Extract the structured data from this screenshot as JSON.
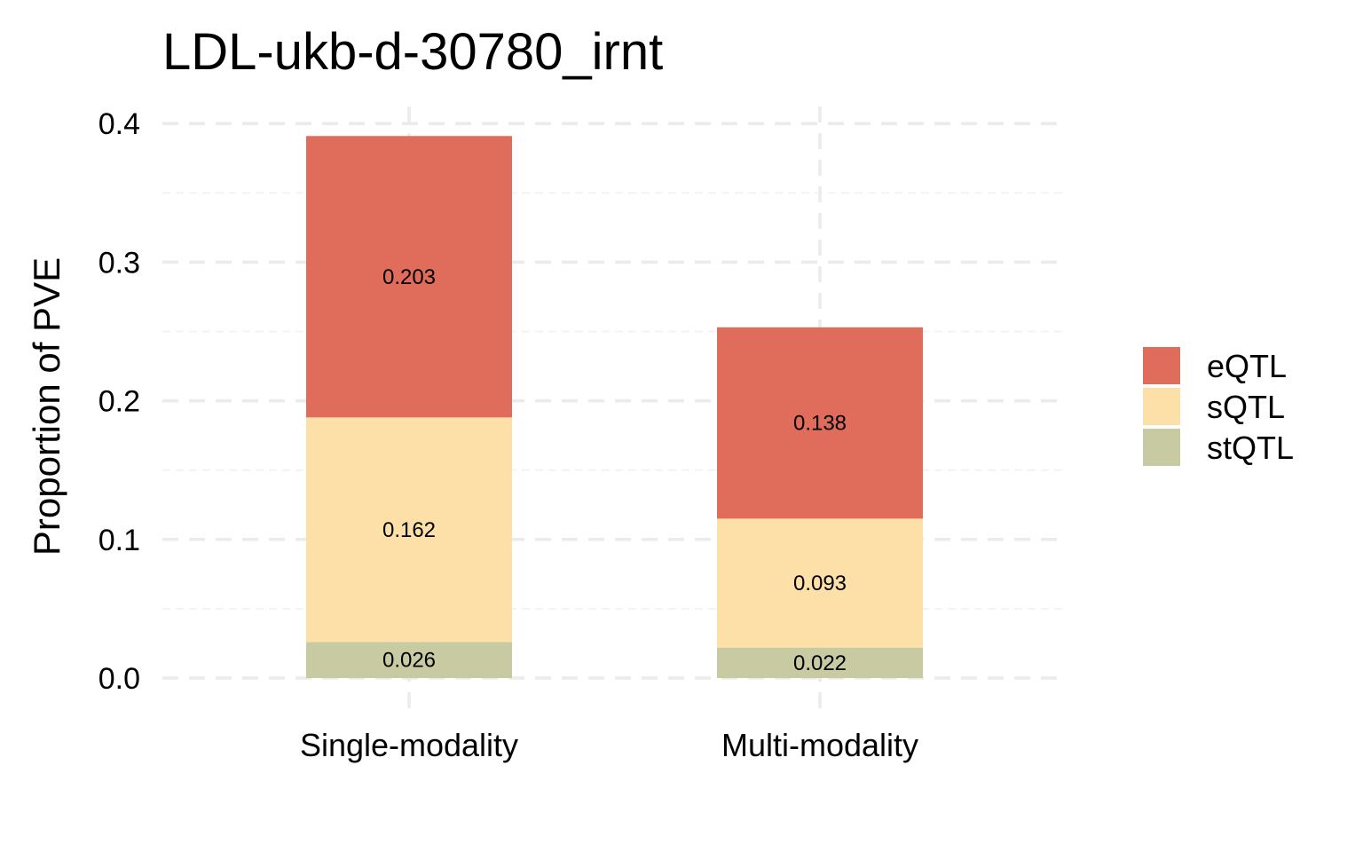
{
  "chart_data": {
    "type": "bar",
    "stacked": true,
    "title": "LDL-ukb-d-30780_irnt",
    "xlabel": "",
    "ylabel": "Proportion of PVE",
    "categories": [
      "Single-modality",
      "Multi-modality"
    ],
    "series": [
      {
        "name": "stQTL",
        "color": "#c8cba2",
        "values": [
          0.026,
          0.022
        ]
      },
      {
        "name": "sQTL",
        "color": "#fde0a7",
        "values": [
          0.162,
          0.093
        ]
      },
      {
        "name": "eQTL",
        "color": "#e06c5c",
        "values": [
          0.203,
          0.138
        ]
      }
    ],
    "segment_labels": [
      [
        "0.026",
        "0.162",
        "0.203"
      ],
      [
        "0.022",
        "0.093",
        "0.138"
      ]
    ],
    "legend_order": [
      "eQTL",
      "sQTL",
      "stQTL"
    ],
    "legend_position": "right",
    "ylim": [
      0,
      0.42
    ],
    "yticks": [
      0.0,
      0.1,
      0.2,
      0.3,
      0.4
    ],
    "ytick_labels": [
      "0.0",
      "0.1",
      "0.2",
      "0.3",
      "0.4"
    ],
    "grid": true
  }
}
